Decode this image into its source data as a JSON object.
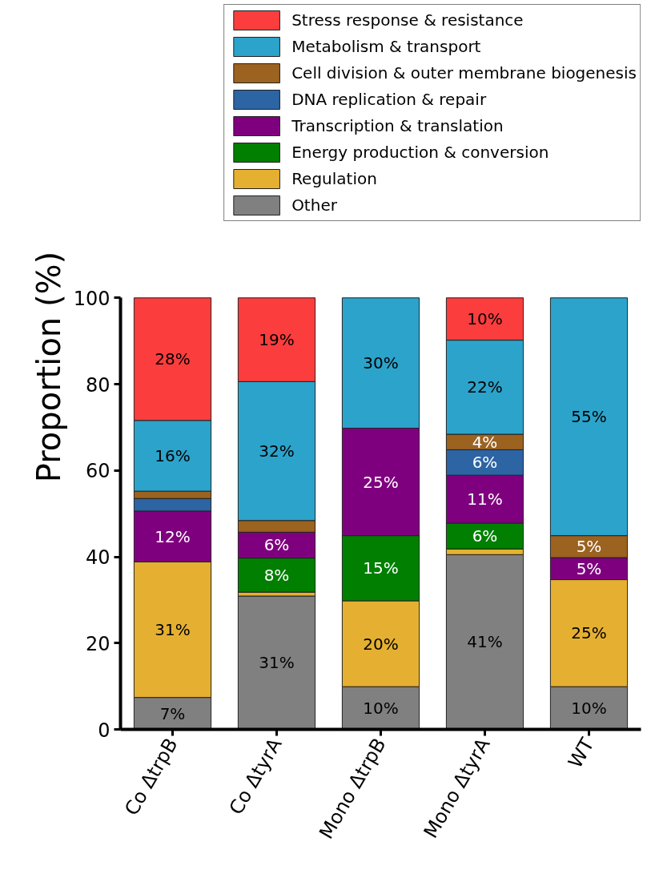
{
  "chart_data": {
    "type": "bar",
    "stacked": true,
    "ylabel": "Proportion (%)",
    "categories": [
      "Co ΔtrpB",
      "Co ΔtyrA",
      "Mono ΔtrpB",
      "Mono ΔtyrA",
      "WT"
    ],
    "ylim": [
      0,
      100
    ],
    "yticks": [
      0,
      20,
      40,
      60,
      80,
      100
    ],
    "grid": false,
    "legend": "top",
    "series": [
      {
        "name": "Other",
        "color": "#808080",
        "values": [
          7.4,
          30.9,
          9.9,
          40.5,
          9.9
        ],
        "value_labels": [
          "7%",
          "31%",
          "10%",
          "41%",
          "10%"
        ]
      },
      {
        "name": "Regulation",
        "color": "#e5b031",
        "values": [
          31.4,
          0.9,
          19.9,
          1.3,
          24.8
        ],
        "value_labels": [
          "31%",
          null,
          "20%",
          null,
          "25%"
        ]
      },
      {
        "name": "Energy production & conversion",
        "color": "#007f00",
        "values": [
          null,
          7.9,
          15.1,
          6.0,
          null
        ],
        "value_labels": [
          null,
          "8%",
          "15%",
          "6%",
          null
        ]
      },
      {
        "name": "Transcription & translation",
        "color": "#7f007f",
        "values": [
          11.8,
          6.0,
          24.9,
          11.1,
          5.1
        ],
        "value_labels": [
          "12%",
          "6%",
          "25%",
          "11%",
          "5%"
        ]
      },
      {
        "name": "DNA replication & repair",
        "color": "#2c64a4",
        "values": [
          2.9,
          null,
          null,
          5.9,
          null
        ],
        "value_labels": [
          null,
          null,
          null,
          "6%",
          null
        ]
      },
      {
        "name": "Cell division & outer membrane biogenesis",
        "color": "#9b6220",
        "values": [
          1.7,
          2.7,
          null,
          3.6,
          5.1
        ],
        "value_labels": [
          null,
          null,
          null,
          "4%",
          "5%"
        ]
      },
      {
        "name": "Metabolism & transport",
        "color": "#2ca3cb",
        "values": [
          16.4,
          32.2,
          30.2,
          21.8,
          55.1
        ],
        "value_labels": [
          "16%",
          "32%",
          "30%",
          "22%",
          "55%"
        ]
      },
      {
        "name": "Stress response & resistance",
        "color": "#fc3d3d",
        "values": [
          28.4,
          19.4,
          null,
          9.8,
          null
        ],
        "value_labels": [
          "28%",
          "19%",
          null,
          "10%",
          null
        ]
      }
    ]
  }
}
